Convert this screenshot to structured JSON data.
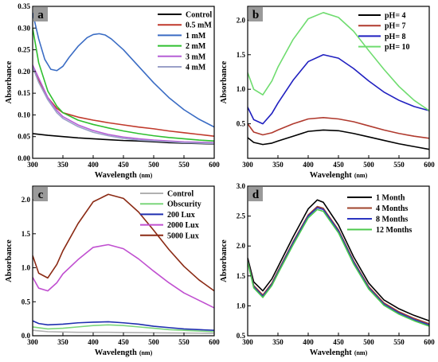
{
  "chart_data": [
    {
      "panel_label": "a",
      "type": "line",
      "xlabel": "Wavelength",
      "xlabel_unit": "(nm)",
      "ylabel": "Absorbance",
      "xlim": [
        300,
        600
      ],
      "ylim": [
        0.0,
        0.35
      ],
      "xticks": [
        300,
        350,
        400,
        450,
        500,
        550,
        600
      ],
      "yticks": [
        0.0,
        0.05,
        0.1,
        0.15,
        0.2,
        0.25,
        0.3,
        0.35
      ],
      "ytick_labels": [
        "0.00",
        "0.05",
        "0.10",
        "0.15",
        "0.20",
        "0.25",
        "0.30",
        "0.35"
      ],
      "legend_position": "top-right",
      "grid": false,
      "series": [
        {
          "name": "Control",
          "color": "#000000",
          "x": [
            300,
            325,
            350,
            375,
            400,
            425,
            450,
            475,
            500,
            525,
            550,
            575,
            600
          ],
          "y": [
            0.057,
            0.053,
            0.05,
            0.047,
            0.045,
            0.043,
            0.041,
            0.04,
            0.038,
            0.036,
            0.035,
            0.034,
            0.033
          ]
        },
        {
          "name": "0.5 mM",
          "color": "#c0392b",
          "x": [
            300,
            310,
            325,
            340,
            350,
            375,
            400,
            425,
            450,
            475,
            500,
            525,
            550,
            575,
            600
          ],
          "y": [
            0.21,
            0.18,
            0.14,
            0.115,
            0.105,
            0.095,
            0.088,
            0.082,
            0.077,
            0.072,
            0.068,
            0.063,
            0.059,
            0.055,
            0.051
          ]
        },
        {
          "name": "1 mM",
          "color": "#3a6cc4",
          "x": [
            300,
            310,
            320,
            330,
            340,
            350,
            360,
            375,
            390,
            400,
            410,
            420,
            430,
            450,
            475,
            500,
            525,
            550,
            575,
            600
          ],
          "y": [
            0.335,
            0.275,
            0.228,
            0.205,
            0.202,
            0.212,
            0.232,
            0.258,
            0.278,
            0.285,
            0.287,
            0.284,
            0.275,
            0.25,
            0.212,
            0.174,
            0.14,
            0.112,
            0.09,
            0.072
          ]
        },
        {
          "name": "2 mM",
          "color": "#2fbf2f",
          "x": [
            300,
            310,
            325,
            340,
            350,
            375,
            400,
            425,
            450,
            475,
            500,
            525,
            550,
            575,
            600
          ],
          "y": [
            0.3,
            0.22,
            0.155,
            0.12,
            0.105,
            0.088,
            0.078,
            0.07,
            0.063,
            0.057,
            0.052,
            0.048,
            0.045,
            0.042,
            0.04
          ]
        },
        {
          "name": "3 mM",
          "color": "#b65fd6",
          "x": [
            300,
            310,
            325,
            340,
            350,
            375,
            400,
            425,
            450,
            475,
            500,
            525,
            550,
            575,
            600
          ],
          "y": [
            0.215,
            0.185,
            0.14,
            0.11,
            0.096,
            0.077,
            0.064,
            0.055,
            0.049,
            0.045,
            0.042,
            0.04,
            0.038,
            0.037,
            0.036
          ]
        },
        {
          "name": "4 mM",
          "color": "#9aa0c8",
          "x": [
            300,
            310,
            325,
            340,
            350,
            375,
            400,
            425,
            450,
            475,
            500,
            525,
            550,
            575,
            600
          ],
          "y": [
            0.21,
            0.175,
            0.135,
            0.105,
            0.092,
            0.073,
            0.06,
            0.052,
            0.046,
            0.042,
            0.04,
            0.038,
            0.036,
            0.035,
            0.034
          ]
        }
      ]
    },
    {
      "panel_label": "b",
      "type": "line",
      "xlabel": "Wavelenght",
      "xlabel_unit": "(nm)",
      "ylabel": "Absorbance",
      "xlim": [
        300,
        600
      ],
      "ylim": [
        0.0,
        2.2
      ],
      "xticks": [
        300,
        350,
        400,
        450,
        500,
        550,
        600
      ],
      "yticks": [
        0.5,
        1.0,
        1.5,
        2.0
      ],
      "ytick_labels": [
        "0.5",
        "1.0",
        "1.5",
        "2.0"
      ],
      "legend_position": "top-right",
      "grid": false,
      "series": [
        {
          "name": "pH= 4",
          "color": "#000000",
          "x": [
            300,
            310,
            325,
            340,
            350,
            375,
            400,
            425,
            450,
            475,
            500,
            525,
            550,
            575,
            600
          ],
          "y": [
            0.3,
            0.23,
            0.2,
            0.22,
            0.25,
            0.32,
            0.39,
            0.41,
            0.4,
            0.36,
            0.31,
            0.26,
            0.21,
            0.17,
            0.13
          ]
        },
        {
          "name": "pH= 7",
          "color": "#b03a2e",
          "x": [
            300,
            310,
            325,
            340,
            350,
            375,
            400,
            425,
            450,
            475,
            500,
            525,
            550,
            575,
            600
          ],
          "y": [
            0.5,
            0.38,
            0.34,
            0.37,
            0.41,
            0.5,
            0.57,
            0.59,
            0.57,
            0.53,
            0.47,
            0.41,
            0.36,
            0.32,
            0.29
          ]
        },
        {
          "name": "pH= 8",
          "color": "#2020c0",
          "x": [
            300,
            310,
            325,
            340,
            350,
            375,
            400,
            425,
            450,
            475,
            500,
            525,
            550,
            575,
            600
          ],
          "y": [
            0.74,
            0.56,
            0.5,
            0.65,
            0.8,
            1.13,
            1.4,
            1.5,
            1.45,
            1.3,
            1.12,
            0.96,
            0.84,
            0.75,
            0.69
          ]
        },
        {
          "name": "pH= 10",
          "color": "#6fdc6f",
          "x": [
            300,
            310,
            325,
            340,
            350,
            375,
            400,
            425,
            450,
            475,
            500,
            525,
            550,
            575,
            600
          ],
          "y": [
            1.24,
            1.0,
            0.92,
            1.12,
            1.32,
            1.72,
            2.02,
            2.11,
            2.04,
            1.84,
            1.56,
            1.29,
            1.04,
            0.84,
            0.69
          ]
        }
      ]
    },
    {
      "panel_label": "c",
      "type": "line",
      "xlabel": "Wavelength",
      "xlabel_unit": "(nm)",
      "ylabel": "Absorbance",
      "xlim": [
        300,
        600
      ],
      "ylim": [
        0.0,
        2.2
      ],
      "xticks": [
        300,
        350,
        400,
        450,
        500,
        550,
        600
      ],
      "yticks": [
        0.0,
        0.5,
        1.0,
        1.5,
        2.0
      ],
      "ytick_labels": [
        "0.0",
        "0.5",
        "1.0",
        "1.5",
        "2.0"
      ],
      "legend_position": "top-right",
      "grid": false,
      "series": [
        {
          "name": "Control",
          "color": "#b0b0b0",
          "x": [
            300,
            325,
            350,
            375,
            400,
            425,
            450,
            475,
            500,
            525,
            550,
            575,
            600
          ],
          "y": [
            0.08,
            0.06,
            0.055,
            0.05,
            0.05,
            0.05,
            0.048,
            0.046,
            0.044,
            0.042,
            0.04,
            0.038,
            0.036
          ]
        },
        {
          "name": "Obscurity",
          "color": "#7bd67b",
          "x": [
            300,
            325,
            350,
            375,
            400,
            425,
            450,
            475,
            500,
            525,
            550,
            575,
            600
          ],
          "y": [
            0.13,
            0.1,
            0.11,
            0.13,
            0.15,
            0.16,
            0.15,
            0.13,
            0.11,
            0.09,
            0.08,
            0.07,
            0.06
          ]
        },
        {
          "name": "200 Lux",
          "color": "#1f2fb0",
          "x": [
            300,
            310,
            325,
            350,
            375,
            400,
            425,
            450,
            475,
            500,
            525,
            550,
            575,
            600
          ],
          "y": [
            0.22,
            0.18,
            0.16,
            0.17,
            0.19,
            0.2,
            0.205,
            0.19,
            0.17,
            0.14,
            0.12,
            0.1,
            0.09,
            0.08
          ]
        },
        {
          "name": "2000 Lux",
          "color": "#c04fd0",
          "x": [
            300,
            310,
            325,
            340,
            350,
            375,
            400,
            425,
            450,
            475,
            500,
            525,
            550,
            575,
            600
          ],
          "y": [
            0.86,
            0.7,
            0.66,
            0.78,
            0.91,
            1.12,
            1.3,
            1.34,
            1.28,
            1.13,
            0.95,
            0.78,
            0.63,
            0.52,
            0.41
          ]
        },
        {
          "name": "5000 Lux",
          "color": "#8b2a14",
          "x": [
            300,
            310,
            325,
            340,
            350,
            375,
            400,
            425,
            450,
            475,
            500,
            525,
            550,
            575,
            600
          ],
          "y": [
            1.18,
            0.92,
            0.85,
            1.05,
            1.25,
            1.65,
            1.97,
            2.08,
            2.02,
            1.82,
            1.55,
            1.27,
            1.02,
            0.82,
            0.66
          ]
        }
      ]
    },
    {
      "panel_label": "d",
      "type": "line",
      "xlabel": "Wavelenght",
      "xlabel_unit": "(nm)",
      "ylabel": "Absorbance",
      "xlim": [
        300,
        600
      ],
      "ylim": [
        0.5,
        3.0
      ],
      "xticks": [
        300,
        350,
        400,
        450,
        500,
        550,
        600
      ],
      "yticks": [
        0.5,
        1.0,
        1.5,
        2.0,
        2.5,
        3.0
      ],
      "ytick_labels": [
        "0.5",
        "1.0",
        "1.5",
        "2.0",
        "2.5",
        "3.0"
      ],
      "legend_position": "top-right",
      "grid": false,
      "series": [
        {
          "name": "1 Month",
          "color": "#000000",
          "x": [
            300,
            310,
            325,
            340,
            350,
            375,
            400,
            415,
            425,
            450,
            475,
            500,
            525,
            550,
            575,
            600
          ],
          "y": [
            1.8,
            1.4,
            1.25,
            1.45,
            1.65,
            2.15,
            2.62,
            2.77,
            2.73,
            2.35,
            1.82,
            1.38,
            1.1,
            0.95,
            0.84,
            0.75
          ]
        },
        {
          "name": "4 Months",
          "color": "#a0442c",
          "x": [
            300,
            310,
            325,
            340,
            350,
            375,
            400,
            415,
            425,
            450,
            475,
            500,
            525,
            550,
            575,
            600
          ],
          "y": [
            1.76,
            1.34,
            1.18,
            1.38,
            1.58,
            2.07,
            2.52,
            2.66,
            2.63,
            2.27,
            1.75,
            1.32,
            1.05,
            0.9,
            0.79,
            0.7
          ]
        },
        {
          "name": "8 Months",
          "color": "#2a34c0",
          "x": [
            300,
            310,
            325,
            340,
            350,
            375,
            400,
            415,
            425,
            450,
            475,
            500,
            525,
            550,
            575,
            600
          ],
          "y": [
            1.75,
            1.32,
            1.16,
            1.36,
            1.56,
            2.05,
            2.5,
            2.64,
            2.61,
            2.25,
            1.73,
            1.3,
            1.03,
            0.88,
            0.77,
            0.68
          ]
        },
        {
          "name": "12 Months",
          "color": "#4cc94c",
          "x": [
            300,
            310,
            325,
            340,
            350,
            375,
            400,
            415,
            425,
            450,
            475,
            500,
            525,
            550,
            575,
            600
          ],
          "y": [
            1.74,
            1.3,
            1.14,
            1.34,
            1.54,
            2.02,
            2.47,
            2.61,
            2.58,
            2.22,
            1.7,
            1.28,
            1.01,
            0.86,
            0.75,
            0.66
          ]
        }
      ]
    }
  ]
}
